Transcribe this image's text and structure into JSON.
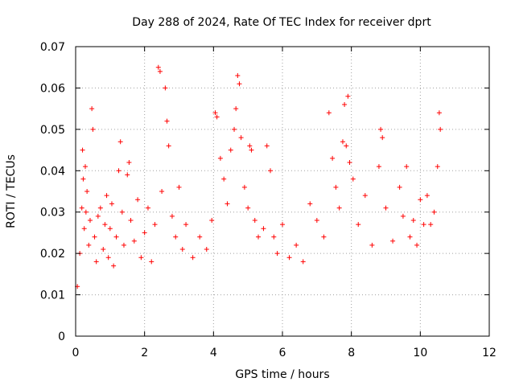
{
  "chart_data": {
    "type": "scatter",
    "title": "Day 288 of 2024, Rate Of TEC Index for receiver dprt",
    "xlabel": "GPS time / hours",
    "ylabel": "ROTI / TECUs",
    "xlim": [
      0,
      12
    ],
    "ylim": [
      0,
      0.07
    ],
    "xticks": [
      0,
      2,
      4,
      6,
      8,
      10,
      12
    ],
    "yticks": [
      0,
      0.01,
      0.02,
      0.03,
      0.04,
      0.05,
      0.06,
      0.07
    ],
    "xtick_labels": [
      "0",
      "2",
      "4",
      "6",
      "8",
      "10",
      "12"
    ],
    "ytick_labels": [
      "0",
      "0.01",
      "0.02",
      "0.03",
      "0.04",
      "0.05",
      "0.06",
      "0.07"
    ],
    "grid": true,
    "marker": "plus",
    "color": "#ff0000",
    "series": [
      {
        "name": "ROTI",
        "x": [
          0.05,
          0.12,
          0.18,
          0.2,
          0.22,
          0.25,
          0.28,
          0.3,
          0.33,
          0.38,
          0.42,
          0.47,
          0.5,
          0.55,
          0.6,
          0.65,
          0.72,
          0.8,
          0.85,
          0.9,
          0.95,
          1.0,
          1.05,
          1.1,
          1.18,
          1.25,
          1.3,
          1.35,
          1.4,
          1.5,
          1.55,
          1.6,
          1.7,
          1.8,
          1.9,
          2.0,
          2.1,
          2.2,
          2.3,
          2.4,
          2.45,
          2.5,
          2.6,
          2.65,
          2.7,
          2.8,
          2.9,
          3.0,
          3.1,
          3.2,
          3.4,
          3.6,
          3.8,
          3.95,
          4.05,
          4.1,
          4.2,
          4.3,
          4.4,
          4.5,
          4.6,
          4.65,
          4.7,
          4.75,
          4.8,
          4.9,
          5.0,
          5.05,
          5.1,
          5.2,
          5.3,
          5.45,
          5.55,
          5.65,
          5.75,
          5.85,
          6.0,
          6.2,
          6.4,
          6.6,
          6.8,
          7.0,
          7.2,
          7.35,
          7.45,
          7.55,
          7.65,
          7.75,
          7.8,
          7.85,
          7.9,
          7.95,
          8.05,
          8.2,
          8.4,
          8.6,
          8.8,
          8.85,
          8.9,
          9.0,
          9.2,
          9.4,
          9.5,
          9.6,
          9.7,
          9.8,
          9.9,
          10.0,
          10.1,
          10.2,
          10.3,
          10.4,
          10.5,
          10.55,
          10.58
        ],
        "y": [
          0.012,
          0.02,
          0.031,
          0.045,
          0.038,
          0.026,
          0.041,
          0.03,
          0.035,
          0.022,
          0.028,
          0.055,
          0.05,
          0.024,
          0.018,
          0.029,
          0.031,
          0.021,
          0.027,
          0.034,
          0.019,
          0.026,
          0.032,
          0.017,
          0.024,
          0.04,
          0.047,
          0.03,
          0.022,
          0.039,
          0.042,
          0.028,
          0.023,
          0.033,
          0.019,
          0.025,
          0.031,
          0.018,
          0.027,
          0.065,
          0.064,
          0.035,
          0.06,
          0.052,
          0.046,
          0.029,
          0.024,
          0.036,
          0.021,
          0.027,
          0.019,
          0.024,
          0.021,
          0.028,
          0.054,
          0.053,
          0.043,
          0.038,
          0.032,
          0.045,
          0.05,
          0.055,
          0.063,
          0.061,
          0.048,
          0.036,
          0.031,
          0.046,
          0.045,
          0.028,
          0.024,
          0.026,
          0.046,
          0.04,
          0.024,
          0.02,
          0.027,
          0.019,
          0.022,
          0.018,
          0.032,
          0.028,
          0.024,
          0.054,
          0.043,
          0.036,
          0.031,
          0.047,
          0.056,
          0.046,
          0.058,
          0.042,
          0.038,
          0.027,
          0.034,
          0.022,
          0.041,
          0.05,
          0.048,
          0.031,
          0.023,
          0.036,
          0.029,
          0.041,
          0.024,
          0.028,
          0.022,
          0.033,
          0.027,
          0.034,
          0.027,
          0.03,
          0.041,
          0.054,
          0.05
        ]
      }
    ]
  }
}
